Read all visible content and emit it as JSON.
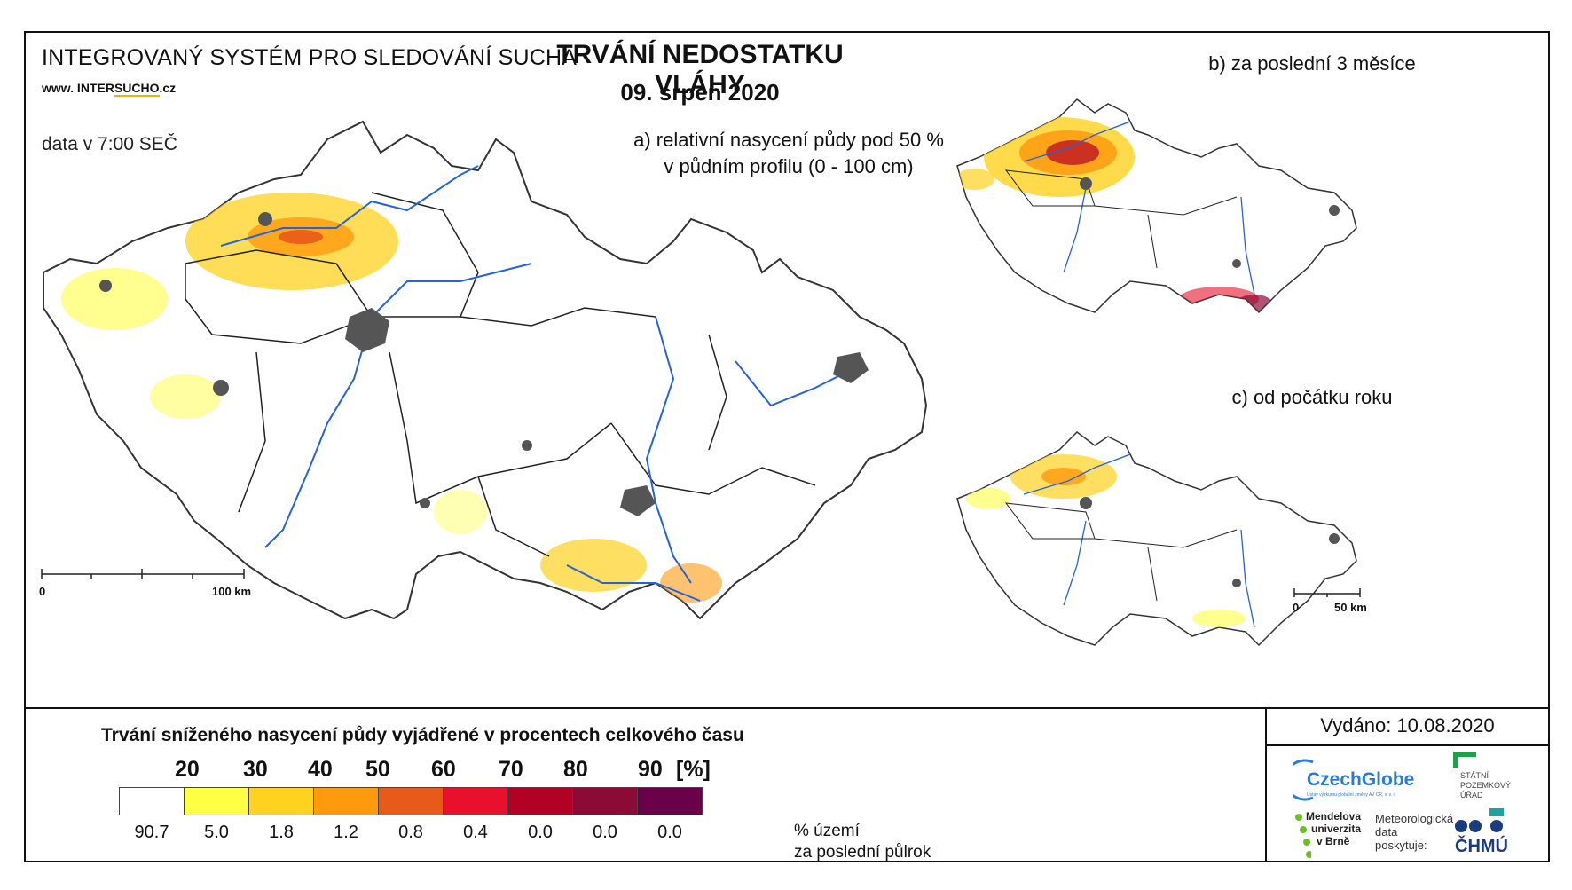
{
  "header": {
    "system_title": "INTEGROVANÝ SYSTÉM PRO SLEDOVÁNÍ SUCHA",
    "website_prefix": "www. INTER",
    "website_highlight": "SUCHO",
    "website_suffix": ".cz",
    "data_time": "data v 7:00 SEČ",
    "main_title": "TRVÁNÍ NEDOSTATKU VLÁHY",
    "date": "09. srpen 2020"
  },
  "map_a": {
    "subtitle_line1": "a) relativní nasycení půdy pod 50 %",
    "subtitle_line2": "v půdním profilu (0 - 100 cm)",
    "scale_start": "0",
    "scale_end": "100 km"
  },
  "map_b": {
    "subtitle": "b) za poslední 3 měsíce"
  },
  "map_c": {
    "subtitle": "c) od počátku roku",
    "scale_start": "0",
    "scale_end": "50 km"
  },
  "legend": {
    "title": "Trvání sníženého nasycení půdy vyjádřené v procentech celkového času",
    "thresholds": [
      "20",
      "30",
      "40",
      "50",
      "60",
      "70",
      "80",
      "90"
    ],
    "unit": "[%]",
    "colors": [
      "#ffffff",
      "#ffff44",
      "#ffd21f",
      "#ff9a0f",
      "#e85a1a",
      "#e8102c",
      "#b30025",
      "#8c0a36",
      "#6a0049"
    ],
    "percents": [
      "90.7",
      "5.0",
      "1.8",
      "1.2",
      "0.8",
      "0.4",
      "0.0",
      "0.0",
      "0.0"
    ],
    "note_line1": "% území",
    "note_line2": "za poslední půlrok"
  },
  "credits": {
    "issued": "Vydáno: 10.08.2020",
    "czechglobe": "CzechGlobe",
    "czechglobe_sub": "Ústav výzkumu globální změny AV ČR, v. v. i.",
    "spu_line1": "STÁTNÍ",
    "spu_line2": "POZEMKOVÝ",
    "spu_line3": "ÚŘAD",
    "mendel_line1": "Mendelova",
    "mendel_line2": "univerzita",
    "mendel_line3": "v Brně",
    "meteo_line1": "Meteorologická",
    "meteo_line2": "data",
    "meteo_line3": "poskytuje:",
    "chmu": "ČHMÚ"
  }
}
